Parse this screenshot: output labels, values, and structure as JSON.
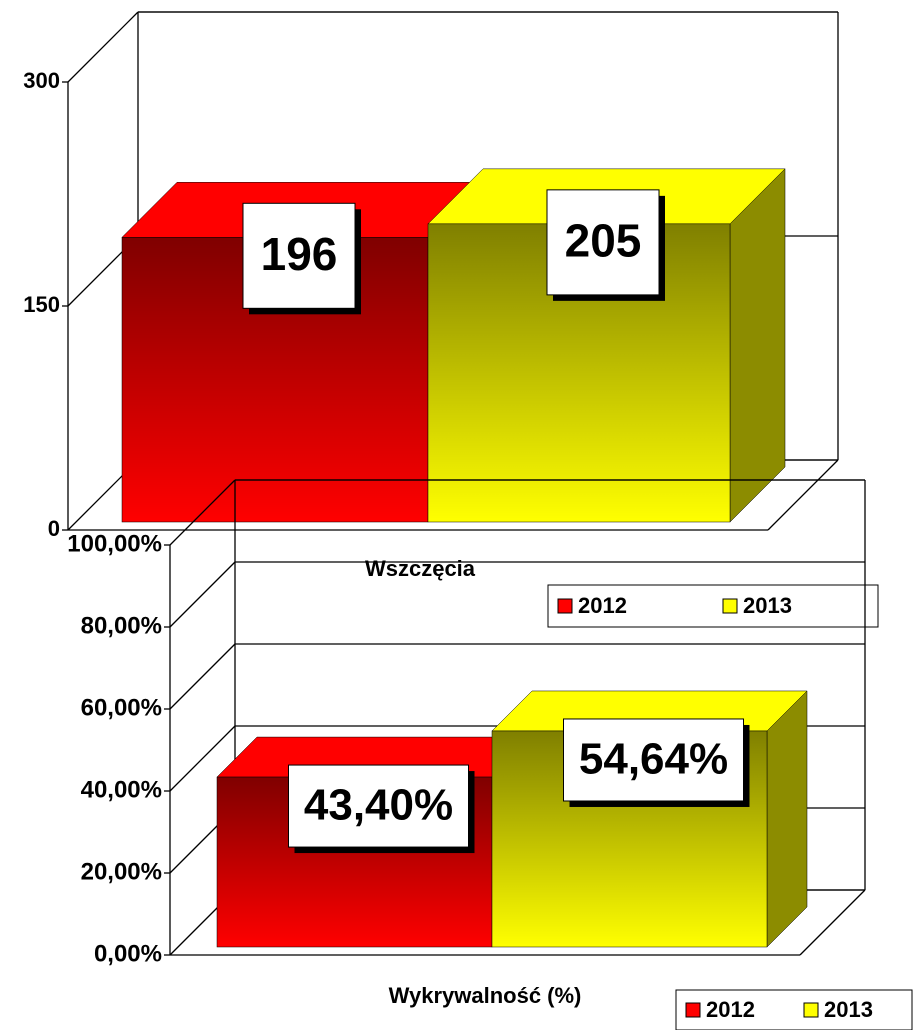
{
  "chart_data": [
    {
      "type": "bar3d",
      "categories": [
        "Wszczęcia"
      ],
      "series": [
        {
          "name": "2012",
          "color": "#ff0000",
          "values": [
            196
          ]
        },
        {
          "name": "2013",
          "color": "#ffff00",
          "values": [
            205
          ]
        }
      ],
      "ylim": [
        0,
        300
      ],
      "yticks": [
        0,
        150,
        300
      ],
      "grid": true,
      "legend": "right"
    },
    {
      "type": "bar3d",
      "categories": [
        "Wykrywalność (%)"
      ],
      "series": [
        {
          "name": "2012",
          "color": "#ff0000",
          "values": [
            43.4
          ],
          "value_labels": [
            "43,40%"
          ]
        },
        {
          "name": "2013",
          "color": "#ffff00",
          "values": [
            54.64
          ],
          "value_labels": [
            "54,64%"
          ]
        }
      ],
      "ylim": [
        0,
        100
      ],
      "yticks": [
        {
          "value": 0,
          "label": "0,00%"
        },
        {
          "value": 20,
          "label": "20,00%"
        },
        {
          "value": 40,
          "label": "40,00%"
        },
        {
          "value": 60,
          "label": "60,00%"
        },
        {
          "value": 80,
          "label": "80,00%"
        },
        {
          "value": 100,
          "label": "100,00%"
        }
      ],
      "grid": true,
      "legend": "bottom-right"
    }
  ]
}
